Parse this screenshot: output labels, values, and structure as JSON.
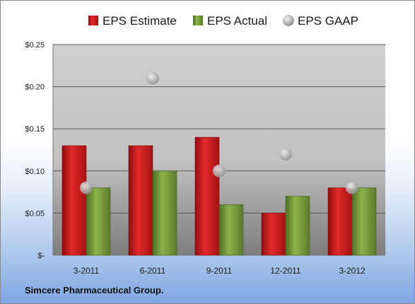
{
  "company": "Simcere Pharmaceutical Group.",
  "chart_data": {
    "type": "bar",
    "categories": [
      "3-2011",
      "6-2011",
      "9-2011",
      "12-2011",
      "3-2012"
    ],
    "series": [
      {
        "name": "EPS Estimate",
        "kind": "bar",
        "color": "#c01818",
        "values": [
          0.13,
          0.13,
          0.14,
          0.05,
          0.08
        ]
      },
      {
        "name": "EPS Actual",
        "kind": "bar",
        "color": "#6f9135",
        "values": [
          0.08,
          0.1,
          0.06,
          0.07,
          0.08
        ]
      },
      {
        "name": "EPS GAAP",
        "kind": "scatter",
        "color": "#a9a9a9",
        "values": [
          0.08,
          0.21,
          0.1,
          0.12,
          0.08
        ]
      }
    ],
    "ylim": [
      0,
      0.25
    ],
    "yticks": [
      0,
      0.05,
      0.1,
      0.15,
      0.2,
      0.25
    ],
    "ytick_labels": [
      "$-",
      "$0.05",
      "$0.10",
      "$0.15",
      "$0.20",
      "$0.25"
    ],
    "grid": true,
    "legend": "top"
  }
}
